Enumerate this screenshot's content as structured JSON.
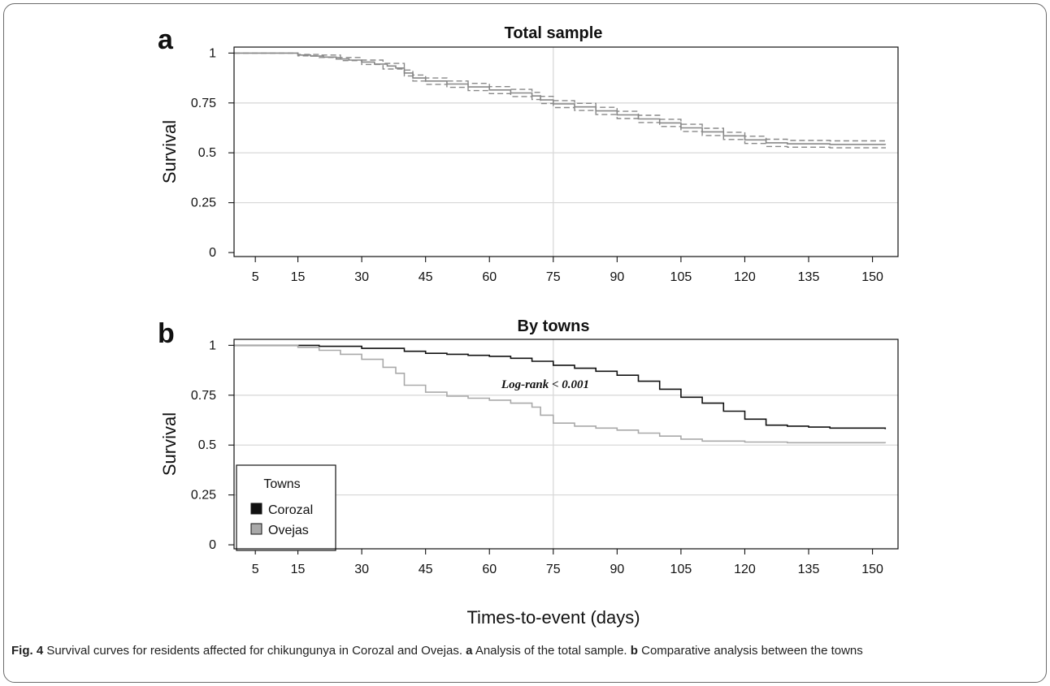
{
  "caption": {
    "fig_label": "Fig. 4",
    "segments": [
      {
        "text": " Survival curves for residents affected for chikungunya in Corozal and Ovejas. ",
        "bold": false
      },
      {
        "text": "a",
        "bold": true
      },
      {
        "text": " Analysis of the total sample. ",
        "bold": false
      },
      {
        "text": "b",
        "bold": true
      },
      {
        "text": " Comparative analysis between the towns",
        "bold": false
      }
    ]
  },
  "shared_xlabel": "Times-to-event (days)",
  "colors": {
    "corozal": "#111111",
    "ovejas": "#a9a9a9",
    "total": "#888888",
    "grid": "#d9d9d9"
  },
  "chart_data": [
    {
      "panel": "a",
      "type": "line",
      "title": "Total sample",
      "xlabel": "Times-to-event (days)",
      "ylabel": "Survival",
      "xlim": [
        0,
        156
      ],
      "ylim": [
        -0.02,
        1.03
      ],
      "xticks": [
        5,
        15,
        30,
        45,
        60,
        75,
        90,
        105,
        120,
        135,
        150
      ],
      "yticks": [
        0,
        0.25,
        0.5,
        0.75,
        1
      ],
      "ytick_labels": [
        "0",
        "0.25",
        "0.5",
        "0.75",
        "1"
      ],
      "grid": {
        "h": [
          0.25,
          0.5,
          0.75
        ],
        "v": [
          75
        ]
      },
      "step": true,
      "series": [
        {
          "role": "estimate",
          "style": "solid",
          "points": [
            [
              0,
              1
            ],
            [
              12,
              1
            ],
            [
              15,
              0.99
            ],
            [
              18,
              0.985
            ],
            [
              21,
              0.98
            ],
            [
              24,
              0.97
            ],
            [
              27,
              0.965
            ],
            [
              30,
              0.955
            ],
            [
              33,
              0.945
            ],
            [
              36,
              0.935
            ],
            [
              38,
              0.925
            ],
            [
              40,
              0.9
            ],
            [
              42,
              0.875
            ],
            [
              45,
              0.86
            ],
            [
              50,
              0.845
            ],
            [
              55,
              0.83
            ],
            [
              60,
              0.815
            ],
            [
              65,
              0.8
            ],
            [
              70,
              0.785
            ],
            [
              72,
              0.765
            ],
            [
              75,
              0.745
            ],
            [
              80,
              0.73
            ],
            [
              85,
              0.71
            ],
            [
              90,
              0.69
            ],
            [
              95,
              0.67
            ],
            [
              100,
              0.65
            ],
            [
              105,
              0.625
            ],
            [
              110,
              0.605
            ],
            [
              115,
              0.585
            ],
            [
              120,
              0.565
            ],
            [
              125,
              0.55
            ],
            [
              130,
              0.545
            ],
            [
              140,
              0.542
            ],
            [
              153,
              0.54
            ]
          ]
        },
        {
          "role": "upper-ci",
          "style": "dashed",
          "points": [
            [
              0,
              1
            ],
            [
              12,
              1
            ],
            [
              15,
              0.993
            ],
            [
              20,
              0.99
            ],
            [
              25,
              0.978
            ],
            [
              30,
              0.965
            ],
            [
              35,
              0.948
            ],
            [
              40,
              0.915
            ],
            [
              42,
              0.89
            ],
            [
              45,
              0.875
            ],
            [
              50,
              0.86
            ],
            [
              55,
              0.848
            ],
            [
              60,
              0.832
            ],
            [
              65,
              0.818
            ],
            [
              70,
              0.803
            ],
            [
              72,
              0.783
            ],
            [
              75,
              0.762
            ],
            [
              80,
              0.748
            ],
            [
              85,
              0.728
            ],
            [
              90,
              0.708
            ],
            [
              95,
              0.688
            ],
            [
              100,
              0.668
            ],
            [
              105,
              0.643
            ],
            [
              110,
              0.623
            ],
            [
              115,
              0.603
            ],
            [
              120,
              0.583
            ],
            [
              125,
              0.568
            ],
            [
              130,
              0.562
            ],
            [
              140,
              0.56
            ],
            [
              153,
              0.557
            ]
          ]
        },
        {
          "role": "lower-ci",
          "style": "dashed",
          "points": [
            [
              0,
              1
            ],
            [
              12,
              1
            ],
            [
              15,
              0.986
            ],
            [
              20,
              0.978
            ],
            [
              25,
              0.962
            ],
            [
              30,
              0.943
            ],
            [
              35,
              0.92
            ],
            [
              40,
              0.885
            ],
            [
              42,
              0.86
            ],
            [
              45,
              0.843
            ],
            [
              50,
              0.828
            ],
            [
              55,
              0.812
            ],
            [
              60,
              0.797
            ],
            [
              65,
              0.782
            ],
            [
              70,
              0.767
            ],
            [
              72,
              0.747
            ],
            [
              75,
              0.727
            ],
            [
              80,
              0.712
            ],
            [
              85,
              0.692
            ],
            [
              90,
              0.672
            ],
            [
              95,
              0.652
            ],
            [
              100,
              0.632
            ],
            [
              105,
              0.607
            ],
            [
              110,
              0.587
            ],
            [
              115,
              0.567
            ],
            [
              120,
              0.547
            ],
            [
              125,
              0.532
            ],
            [
              130,
              0.528
            ],
            [
              140,
              0.525
            ],
            [
              153,
              0.522
            ]
          ]
        }
      ]
    },
    {
      "panel": "b",
      "type": "line",
      "title": "By towns",
      "xlabel": "Times-to-event (days)",
      "ylabel": "Survival",
      "xlim": [
        0,
        156
      ],
      "ylim": [
        -0.02,
        1.03
      ],
      "xticks": [
        5,
        15,
        30,
        45,
        60,
        75,
        90,
        105,
        120,
        135,
        150
      ],
      "yticks": [
        0,
        0.25,
        0.5,
        0.75,
        1
      ],
      "ytick_labels": [
        "0",
        "0.25",
        "0.5",
        "0.75",
        "1"
      ],
      "grid": {
        "h": [
          0.25,
          0.5,
          0.75
        ],
        "v": [
          75
        ]
      },
      "step": true,
      "annotation": {
        "text": "Log-rank < 0.001",
        "x": 82,
        "y": 0.8
      },
      "legend": {
        "title": "Towns",
        "placement": "bottom-left",
        "entries": [
          "Corozal",
          "Ovejas"
        ]
      },
      "series": [
        {
          "name": "Corozal",
          "style": "solid",
          "points": [
            [
              0,
              1
            ],
            [
              15,
              1
            ],
            [
              20,
              0.995
            ],
            [
              30,
              0.985
            ],
            [
              40,
              0.97
            ],
            [
              45,
              0.96
            ],
            [
              50,
              0.955
            ],
            [
              55,
              0.95
            ],
            [
              60,
              0.945
            ],
            [
              65,
              0.935
            ],
            [
              70,
              0.92
            ],
            [
              75,
              0.9
            ],
            [
              80,
              0.885
            ],
            [
              85,
              0.87
            ],
            [
              90,
              0.85
            ],
            [
              95,
              0.82
            ],
            [
              100,
              0.78
            ],
            [
              105,
              0.74
            ],
            [
              110,
              0.71
            ],
            [
              115,
              0.67
            ],
            [
              120,
              0.63
            ],
            [
              125,
              0.6
            ],
            [
              130,
              0.595
            ],
            [
              135,
              0.59
            ],
            [
              140,
              0.585
            ],
            [
              153,
              0.58
            ]
          ]
        },
        {
          "name": "Ovejas",
          "style": "solid",
          "points": [
            [
              0,
              1
            ],
            [
              15,
              0.99
            ],
            [
              20,
              0.975
            ],
            [
              25,
              0.955
            ],
            [
              30,
              0.93
            ],
            [
              35,
              0.89
            ],
            [
              38,
              0.86
            ],
            [
              40,
              0.8
            ],
            [
              45,
              0.765
            ],
            [
              50,
              0.745
            ],
            [
              55,
              0.735
            ],
            [
              60,
              0.725
            ],
            [
              65,
              0.71
            ],
            [
              70,
              0.69
            ],
            [
              72,
              0.65
            ],
            [
              75,
              0.61
            ],
            [
              80,
              0.595
            ],
            [
              85,
              0.585
            ],
            [
              90,
              0.575
            ],
            [
              95,
              0.56
            ],
            [
              100,
              0.545
            ],
            [
              105,
              0.53
            ],
            [
              110,
              0.52
            ],
            [
              120,
              0.515
            ],
            [
              130,
              0.512
            ],
            [
              153,
              0.51
            ]
          ]
        }
      ]
    }
  ]
}
